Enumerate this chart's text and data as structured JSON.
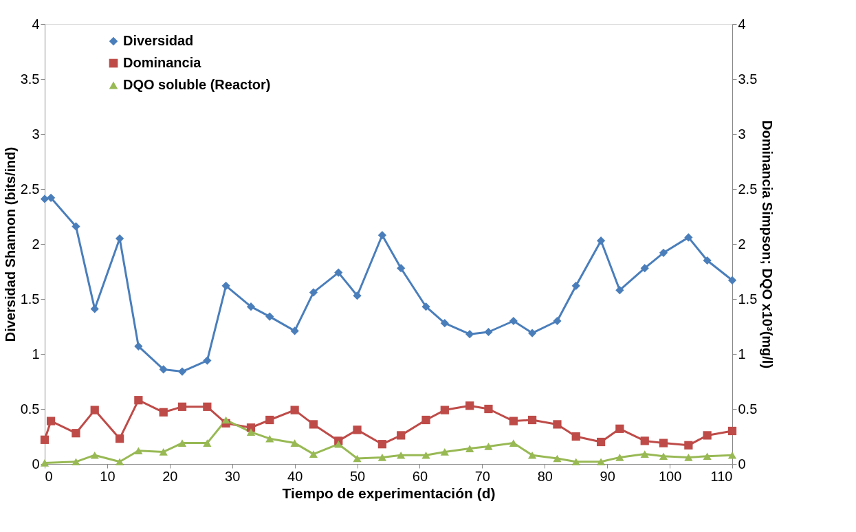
{
  "chart_data": {
    "type": "line",
    "xlabel": "Tiempo de experimentación (d)",
    "ylabel": "Diversidad Shannon (bits/ind)",
    "y2label": "Dominancia Simpson; DQO x10³(mg/l)",
    "xlim": [
      0,
      110
    ],
    "xticks": [
      0,
      10,
      20,
      30,
      40,
      50,
      60,
      70,
      80,
      90,
      100,
      110
    ],
    "ylim": [
      0,
      4
    ],
    "yticks": [
      0,
      0.5,
      1,
      1.5,
      2,
      2.5,
      3,
      3.5,
      4
    ],
    "y2lim": [
      0,
      4
    ],
    "y2ticks": [
      0,
      0.5,
      1,
      1.5,
      2,
      2.5,
      3,
      3.5,
      4
    ],
    "grid": false,
    "legend": "top left",
    "line_style": "solid",
    "series": [
      {
        "name": "Diversidad",
        "color": "#4a7ebb",
        "marker": "diamond",
        "x": [
          0,
          1,
          5,
          8,
          12,
          15,
          19,
          22,
          26,
          29,
          33,
          36,
          40,
          43,
          47,
          50,
          54,
          57,
          61,
          64,
          68,
          71,
          75,
          78,
          82,
          85,
          89,
          92,
          96,
          99,
          103,
          106,
          110
        ],
        "values": [
          2.41,
          2.42,
          2.16,
          1.41,
          2.05,
          1.07,
          0.86,
          0.84,
          0.94,
          1.62,
          1.43,
          1.34,
          1.21,
          1.56,
          1.74,
          1.53,
          2.08,
          1.78,
          1.43,
          1.28,
          1.18,
          1.2,
          1.3,
          1.19,
          1.3,
          1.62,
          2.03,
          1.58,
          1.78,
          1.92,
          2.06,
          1.85,
          1.67
        ]
      },
      {
        "name": "Dominancia",
        "color": "#be4b48",
        "marker": "square",
        "axis": "y2",
        "x": [
          0,
          1,
          5,
          8,
          12,
          15,
          19,
          22,
          26,
          29,
          33,
          36,
          40,
          43,
          47,
          50,
          54,
          57,
          61,
          64,
          68,
          71,
          75,
          78,
          82,
          85,
          89,
          92,
          96,
          99,
          103,
          106,
          110
        ],
        "values": [
          0.22,
          0.39,
          0.28,
          0.49,
          0.23,
          0.58,
          0.47,
          0.52,
          0.52,
          0.37,
          0.33,
          0.4,
          0.49,
          0.36,
          0.21,
          0.31,
          0.18,
          0.26,
          0.4,
          0.49,
          0.53,
          0.5,
          0.39,
          0.4,
          0.36,
          0.25,
          0.2,
          0.32,
          0.21,
          0.19,
          0.17,
          0.26,
          0.3
        ]
      },
      {
        "name": "DQO soluble (Reactor)",
        "color": "#98b954",
        "marker": "triangle",
        "axis": "y2",
        "x": [
          0,
          5,
          8,
          12,
          15,
          19,
          22,
          26,
          29,
          33,
          36,
          40,
          43,
          47,
          50,
          54,
          57,
          61,
          64,
          68,
          71,
          75,
          78,
          82,
          85,
          89,
          92,
          96,
          99,
          103,
          106,
          110
        ],
        "values": [
          0.01,
          0.02,
          0.08,
          0.02,
          0.12,
          0.11,
          0.19,
          0.19,
          0.4,
          0.29,
          0.23,
          0.19,
          0.09,
          0.18,
          0.05,
          0.06,
          0.08,
          0.08,
          0.11,
          0.14,
          0.16,
          0.19,
          0.08,
          0.05,
          0.02,
          0.02,
          0.06,
          0.09,
          0.07,
          0.06,
          0.07,
          0.08
        ]
      }
    ]
  }
}
